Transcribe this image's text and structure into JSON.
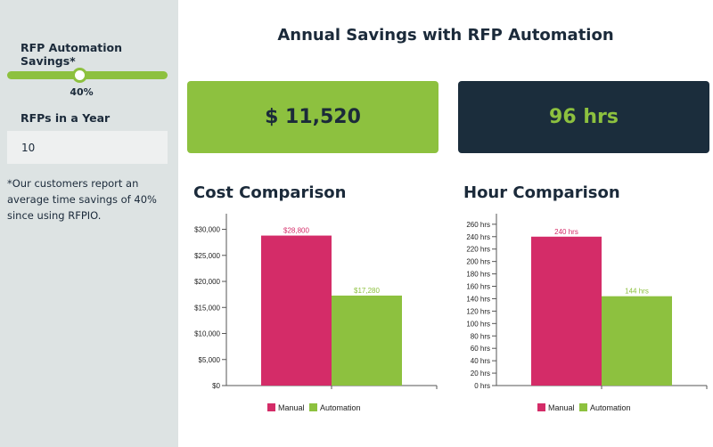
{
  "sidebar": {
    "savings_label": "RFP Automation Savings*",
    "savings_value": 40,
    "savings_text": "40%",
    "rfps_label": "RFPs in a Year",
    "rfps_value": "10",
    "note": "*Our customers report an average time savings of 40% since using RFPIO."
  },
  "main": {
    "title": "Annual Savings with RFP Automation",
    "cost_savings": "$ 11,520",
    "hour_savings": "96 hrs"
  },
  "colors": {
    "manual": "#d42c68",
    "automation": "#8dc13f",
    "dark": "#1b2d3c"
  },
  "chart_data": [
    {
      "type": "bar",
      "title": "Cost Comparison",
      "categories": [
        "Manual",
        "Automation"
      ],
      "values": [
        28800,
        17280
      ],
      "data_labels": [
        "$28,800",
        "$17,280"
      ],
      "yticks": [
        0,
        5000,
        10000,
        15000,
        20000,
        25000,
        30000
      ],
      "ytick_labels": [
        "$0",
        "$5,000",
        "$10,000",
        "$15,000",
        "$20,000",
        "$25,000",
        "$30,000"
      ],
      "ylim": [
        0,
        33000
      ],
      "legend": "bottom",
      "grid": false
    },
    {
      "type": "bar",
      "title": "Hour Comparison",
      "categories": [
        "Manual",
        "Automation"
      ],
      "values": [
        240,
        144
      ],
      "data_labels": [
        "240 hrs",
        "144 hrs"
      ],
      "yticks": [
        0,
        20,
        40,
        60,
        80,
        100,
        120,
        140,
        160,
        180,
        200,
        220,
        240,
        260
      ],
      "ytick_labels": [
        "0 hrs",
        "20 hrs",
        "40 hrs",
        "60 hrs",
        "80 hrs",
        "100 hrs",
        "120 hrs",
        "140 hrs",
        "160 hrs",
        "180 hrs",
        "200 hrs",
        "220 hrs",
        "240 hrs",
        "260 hrs"
      ],
      "ylim": [
        0,
        277
      ],
      "legend": "bottom",
      "grid": false
    }
  ]
}
